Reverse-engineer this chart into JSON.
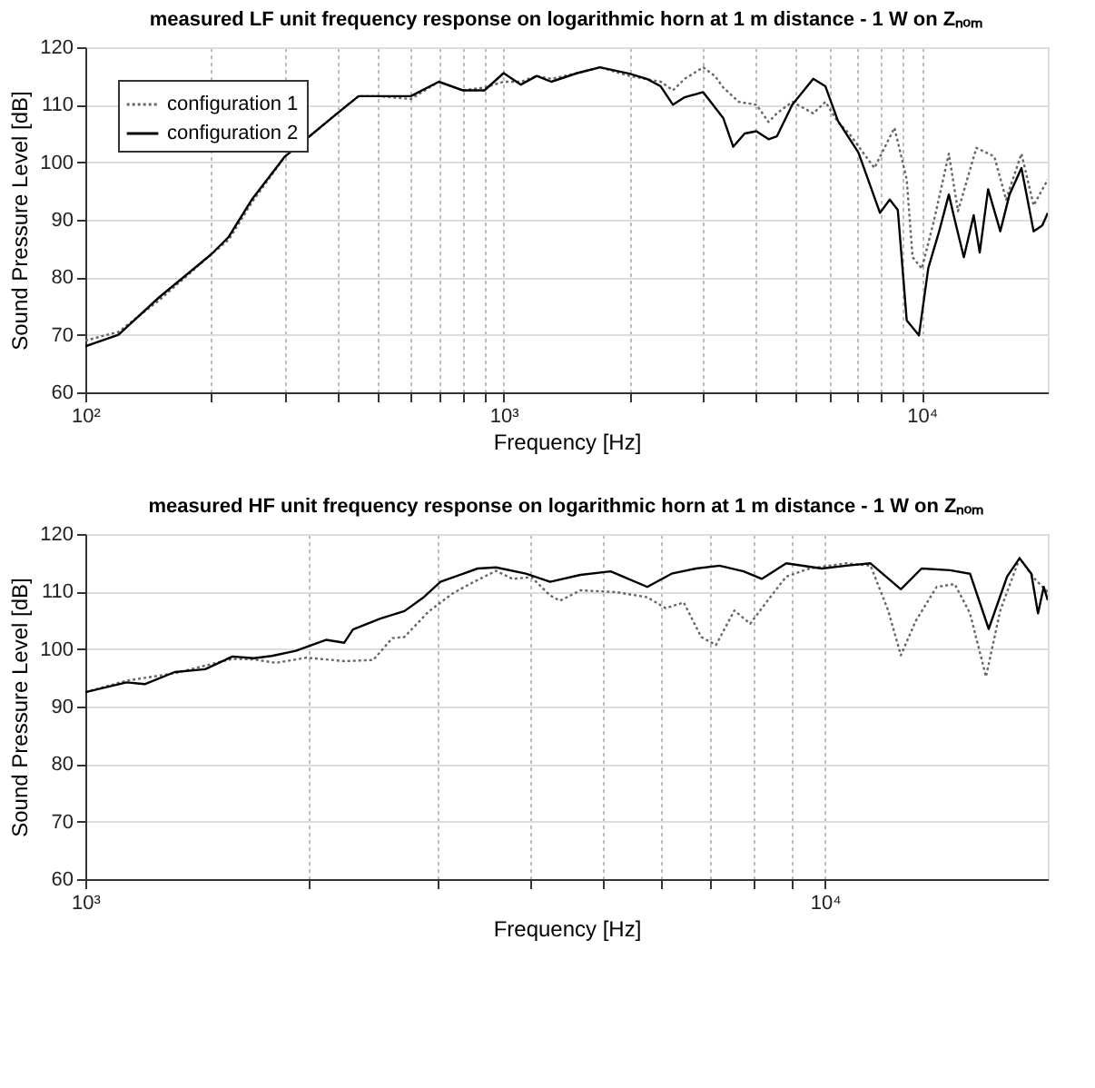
{
  "chart_data": [
    {
      "type": "line",
      "title": "measured LF unit frequency response on logarithmic horn at 1 m distance - 1 W on Zₙₒₘ",
      "xlabel": "Frequency [Hz]",
      "ylabel": "Sound Pressure Level [dB]",
      "log": "x",
      "grid": true,
      "legend": "top left",
      "xlim": [
        100,
        20000
      ],
      "xticks": [
        {
          "value": 100,
          "label": "10²"
        },
        {
          "value": 200,
          "label": null
        },
        {
          "value": 300,
          "label": null
        },
        {
          "value": 400,
          "label": null
        },
        {
          "value": 500,
          "label": null
        },
        {
          "value": 600,
          "label": null
        },
        {
          "value": 700,
          "label": null
        },
        {
          "value": 800,
          "label": null
        },
        {
          "value": 900,
          "label": null
        },
        {
          "value": 1000,
          "label": "10³"
        },
        {
          "value": 2000,
          "label": null
        },
        {
          "value": 3000,
          "label": null
        },
        {
          "value": 4000,
          "label": null
        },
        {
          "value": 5000,
          "label": null
        },
        {
          "value": 6000,
          "label": null
        },
        {
          "value": 7000,
          "label": null
        },
        {
          "value": 8000,
          "label": null
        },
        {
          "value": 9000,
          "label": null
        },
        {
          "value": 10000,
          "label": "10⁴"
        }
      ],
      "ylim": [
        60,
        120
      ],
      "yticks": [
        60,
        70,
        80,
        90,
        100,
        110,
        120
      ],
      "series": [
        {
          "name": "configuration 1",
          "color": "#666666",
          "line_style": "dotted",
          "x": [
            100,
            120,
            150,
            200,
            220,
            250,
            300,
            350,
            400,
            450,
            500,
            600,
            700,
            800,
            900,
            1000,
            1100,
            1200,
            1300,
            1500,
            1700,
            2000,
            2375,
            2540,
            2710,
            3000,
            3200,
            3350,
            3650,
            4020,
            4300,
            4500,
            4900,
            5500,
            5880,
            6300,
            6700,
            7700,
            8600,
            9200,
            9500,
            10000,
            10700,
            11600,
            12200,
            13500,
            14900,
            15900,
            17300,
            18500,
            20000
          ],
          "values": [
            69,
            70.5,
            76,
            84,
            86.5,
            93,
            101,
            105,
            108.5,
            111.5,
            111.5,
            111,
            114,
            112.5,
            113,
            114,
            114,
            115,
            114.5,
            115.5,
            116.5,
            115,
            114,
            112.5,
            114.5,
            116.5,
            115,
            113,
            110.5,
            110,
            107,
            108.5,
            110.5,
            108.5,
            110.5,
            107,
            105,
            99,
            106,
            97,
            83.5,
            81.5,
            90,
            101.5,
            91.5,
            102.5,
            101,
            93.5,
            101.5,
            92.5,
            97
          ]
        },
        {
          "name": "configuration 2",
          "color": "#000000",
          "line_style": "solid",
          "x": [
            100,
            120,
            150,
            200,
            220,
            250,
            300,
            350,
            400,
            450,
            500,
            600,
            700,
            800,
            900,
            1000,
            1100,
            1200,
            1300,
            1500,
            1700,
            2000,
            2200,
            2375,
            2540,
            2710,
            3000,
            3350,
            3540,
            3770,
            4020,
            4300,
            4500,
            4900,
            5500,
            5880,
            6300,
            7050,
            7940,
            8380,
            8760,
            9200,
            9840,
            10360,
            11000,
            11600,
            12000,
            12600,
            13300,
            13750,
            14400,
            15400,
            16200,
            17300,
            18500,
            19400,
            20000
          ],
          "values": [
            68,
            70,
            76.5,
            84,
            87,
            93.5,
            101,
            105,
            108.5,
            111.5,
            111.5,
            111.5,
            114,
            112.5,
            112.5,
            115.5,
            113.5,
            115,
            114,
            115.5,
            116.5,
            115.4,
            114.5,
            113.2,
            110,
            111.3,
            112.2,
            107.7,
            102.7,
            105,
            105.4,
            104,
            104.5,
            110,
            114.5,
            113.2,
            107.2,
            101.7,
            91.2,
            93.5,
            91.7,
            72.5,
            69.9,
            81.6,
            88,
            94.4,
            89.8,
            83.5,
            90.8,
            84.3,
            95.3,
            88,
            94.4,
            99,
            88,
            89,
            91.2
          ]
        }
      ]
    },
    {
      "type": "line",
      "title": "measured HF unit frequency response on logarithmic horn at 1 m distance - 1 W on Zₙₒₘ",
      "xlabel": "Frequency [Hz]",
      "ylabel": "Sound Pressure Level [dB]",
      "log": "x",
      "grid": true,
      "legend": "top left",
      "xlim": [
        1000,
        20000
      ],
      "xticks": [
        {
          "value": 1000,
          "label": "10³"
        },
        {
          "value": 2000,
          "label": null
        },
        {
          "value": 3000,
          "label": null
        },
        {
          "value": 4000,
          "label": null
        },
        {
          "value": 5000,
          "label": null
        },
        {
          "value": 6000,
          "label": null
        },
        {
          "value": 7000,
          "label": null
        },
        {
          "value": 8000,
          "label": null
        },
        {
          "value": 9000,
          "label": null
        },
        {
          "value": 10000,
          "label": "10⁴"
        }
      ],
      "ylim": [
        60,
        120
      ],
      "yticks": [
        60,
        70,
        80,
        90,
        100,
        110,
        120
      ],
      "series": [
        {
          "name": "configuration 1",
          "color": "#666666",
          "line_style": "dotted",
          "x": [
            1000,
            1137,
            1321,
            1581,
            1689,
            1810,
            1990,
            2240,
            2450,
            2600,
            2700,
            2910,
            3140,
            3330,
            3590,
            3780,
            4010,
            4250,
            4380,
            4670,
            5220,
            5750,
            6090,
            6440,
            6800,
            7120,
            7540,
            7920,
            8360,
            8860,
            9530,
            10680,
            11520,
            12170,
            12660,
            13250,
            14150,
            14970,
            15700,
            16500,
            17250,
            18320,
            19200,
            20000
          ],
          "values": [
            92.5,
            94.5,
            95.8,
            98.3,
            98.2,
            97.6,
            98.5,
            97.9,
            98.1,
            101.9,
            102.1,
            106.5,
            109.7,
            111.5,
            113.6,
            112.2,
            112.5,
            109.3,
            108.4,
            110.2,
            109.9,
            109,
            107.1,
            108.1,
            102.1,
            100.7,
            106.7,
            104.4,
            108.4,
            112.6,
            114,
            114.9,
            114.5,
            106.7,
            98.9,
            104.8,
            110.8,
            111.3,
            106.2,
            95.2,
            106.7,
            115.8,
            112.2,
            109.9
          ]
        },
        {
          "name": "configuration 2",
          "color": "#000000",
          "line_style": "solid",
          "x": [
            1000,
            1137,
            1203,
            1321,
            1452,
            1581,
            1689,
            1787,
            1925,
            2115,
            2239,
            2300,
            2505,
            2700,
            2860,
            3020,
            3390,
            3590,
            3940,
            4250,
            4670,
            5130,
            5330,
            5750,
            6200,
            6690,
            7200,
            7760,
            8210,
            8860,
            9900,
            10680,
            11520,
            12660,
            13500,
            14750,
            15700,
            16640,
            17620,
            18320,
            19000,
            19400,
            19750,
            20000
          ],
          "values": [
            92.5,
            94.2,
            93.9,
            96,
            96.5,
            98.7,
            98.4,
            98.8,
            99.7,
            101.6,
            101.1,
            103.4,
            105.3,
            106.6,
            108.9,
            111.7,
            114,
            114.2,
            113.1,
            111.7,
            112.9,
            113.5,
            112.6,
            110.8,
            113.1,
            114,
            114.5,
            113.5,
            112.2,
            114.9,
            114,
            114.5,
            114.9,
            110.4,
            114,
            113.7,
            113.1,
            103.5,
            112.6,
            115.8,
            113.1,
            106.2,
            110.8,
            108.5
          ]
        }
      ]
    }
  ]
}
